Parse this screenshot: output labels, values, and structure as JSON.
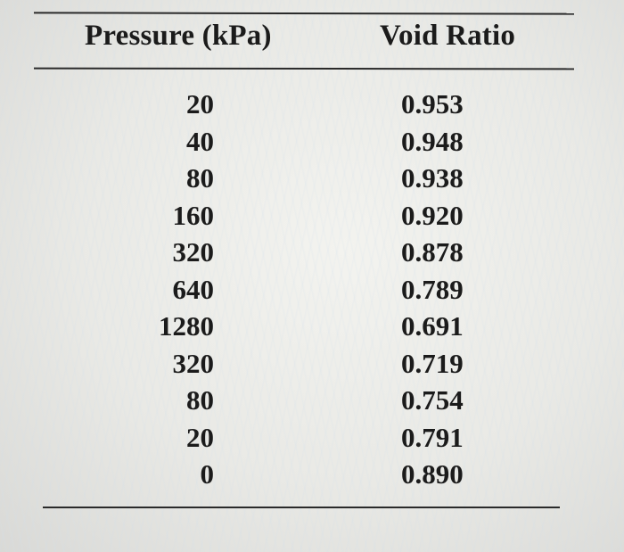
{
  "table": {
    "columns": [
      "Pressure (kPa)",
      "Void Ratio"
    ],
    "rows": [
      {
        "pressure": "20",
        "void_ratio": "0.953"
      },
      {
        "pressure": "40",
        "void_ratio": "0.948"
      },
      {
        "pressure": "80",
        "void_ratio": "0.938"
      },
      {
        "pressure": "160",
        "void_ratio": "0.920"
      },
      {
        "pressure": "320",
        "void_ratio": "0.878"
      },
      {
        "pressure": "640",
        "void_ratio": "0.789"
      },
      {
        "pressure": "1280",
        "void_ratio": "0.691"
      },
      {
        "pressure": "320",
        "void_ratio": "0.719"
      },
      {
        "pressure": "80",
        "void_ratio": "0.754"
      },
      {
        "pressure": "20",
        "void_ratio": "0.791"
      },
      {
        "pressure": "0",
        "void_ratio": "0.890"
      }
    ]
  }
}
